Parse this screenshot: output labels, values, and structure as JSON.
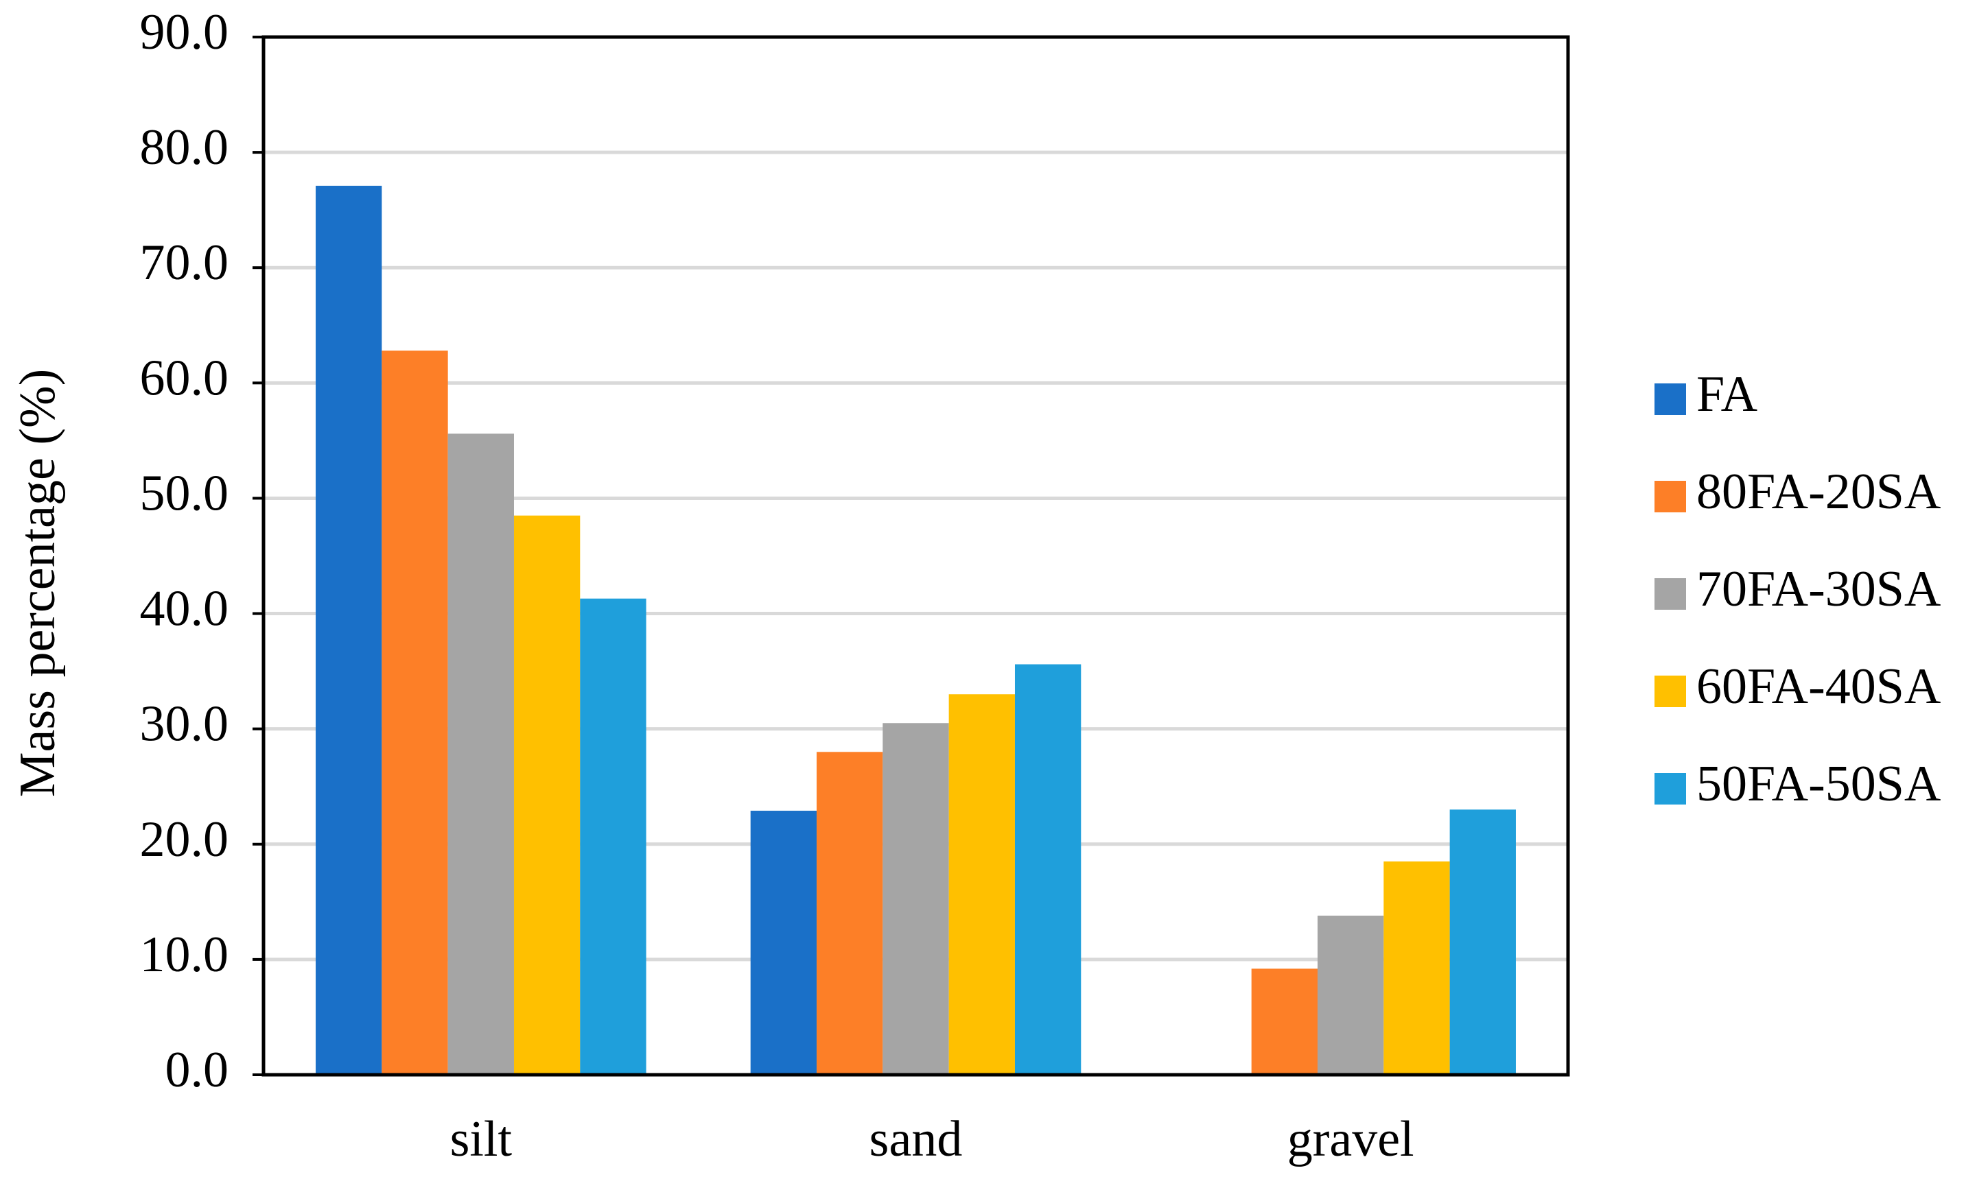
{
  "chart_data": {
    "type": "bar",
    "y_label": "Mass percentage (%)",
    "categories": [
      "silt",
      "sand",
      "gravel"
    ],
    "series": [
      {
        "name": "FA",
        "color": "#1a70c8",
        "values": [
          77.1,
          22.9,
          0
        ]
      },
      {
        "name": "80FA-20SA",
        "color": "#fd7f27",
        "values": [
          62.8,
          28.0,
          9.2
        ]
      },
      {
        "name": "70FA-30SA",
        "color": "#a5a5a5",
        "values": [
          55.6,
          30.5,
          13.8
        ]
      },
      {
        "name": "60FA-40SA",
        "color": "#ffc000",
        "values": [
          48.5,
          33.0,
          18.5
        ]
      },
      {
        "name": "50FA-50SA",
        "color": "#1f9fdb",
        "values": [
          41.3,
          35.6,
          23.0
        ]
      }
    ],
    "ylim": [
      0,
      90
    ],
    "yticks": [
      {
        "value": 0,
        "label": "0.0"
      },
      {
        "value": 10,
        "label": "10.0"
      },
      {
        "value": 20,
        "label": "20.0"
      },
      {
        "value": 30,
        "label": "30.0"
      },
      {
        "value": 40,
        "label": "40.0"
      },
      {
        "value": 50,
        "label": "50.0"
      },
      {
        "value": 60,
        "label": "60.0"
      },
      {
        "value": 70,
        "label": "70.0"
      },
      {
        "value": 80,
        "label": "80.0"
      },
      {
        "value": 90,
        "label": "90.0"
      }
    ],
    "grid": true,
    "legend": "right"
  }
}
